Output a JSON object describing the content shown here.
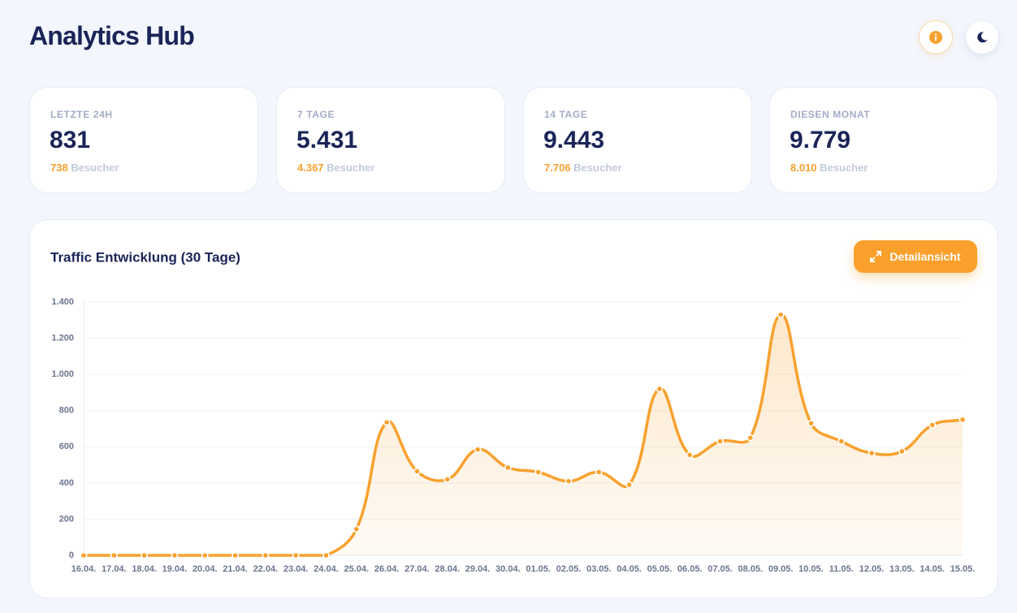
{
  "header": {
    "title": "Analytics Hub"
  },
  "cards": [
    {
      "label": "LETZTE 24H",
      "value": "831",
      "sub_value": "738",
      "sub_label": "Besucher"
    },
    {
      "label": "7 TAGE",
      "value": "5.431",
      "sub_value": "4.367",
      "sub_label": "Besucher"
    },
    {
      "label": "14 TAGE",
      "value": "9.443",
      "sub_value": "7.706",
      "sub_label": "Besucher"
    },
    {
      "label": "DIESEN MONAT",
      "value": "9.779",
      "sub_value": "8.010",
      "sub_label": "Besucher"
    }
  ],
  "button": {
    "label": "Detailansicht"
  },
  "chart_data": {
    "type": "line",
    "title": "Traffic Entwicklung (30 Tage)",
    "categories": [
      "16.04.",
      "17.04.",
      "18.04.",
      "19.04.",
      "20.04.",
      "21.04.",
      "22.04.",
      "23.04.",
      "24.04.",
      "25.04.",
      "26.04.",
      "27.04.",
      "28.04.",
      "29.04.",
      "30.04.",
      "01.05.",
      "02.05.",
      "03.05.",
      "04.05.",
      "05.05.",
      "06.05.",
      "07.05.",
      "08.05.",
      "09.05.",
      "10.05.",
      "11.05.",
      "12.05.",
      "13.05.",
      "14.05.",
      "15.05."
    ],
    "series": [
      {
        "color": "#f9a12e",
        "values": [
          0,
          0,
          0,
          0,
          0,
          0,
          0,
          0,
          0,
          145,
          735,
          465,
          420,
          585,
          485,
          460,
          410,
          460,
          390,
          920,
          555,
          630,
          650,
          1330,
          730,
          630,
          565,
          575,
          720,
          750
        ]
      }
    ],
    "ylim": [
      0,
      1400
    ],
    "yticks": [
      0,
      200,
      400,
      600,
      800,
      {
        "value": 1000,
        "label": "1.000"
      },
      {
        "value": 1200,
        "label": "1.200"
      },
      {
        "value": 1400,
        "label": "1.400"
      }
    ],
    "grid": true
  }
}
